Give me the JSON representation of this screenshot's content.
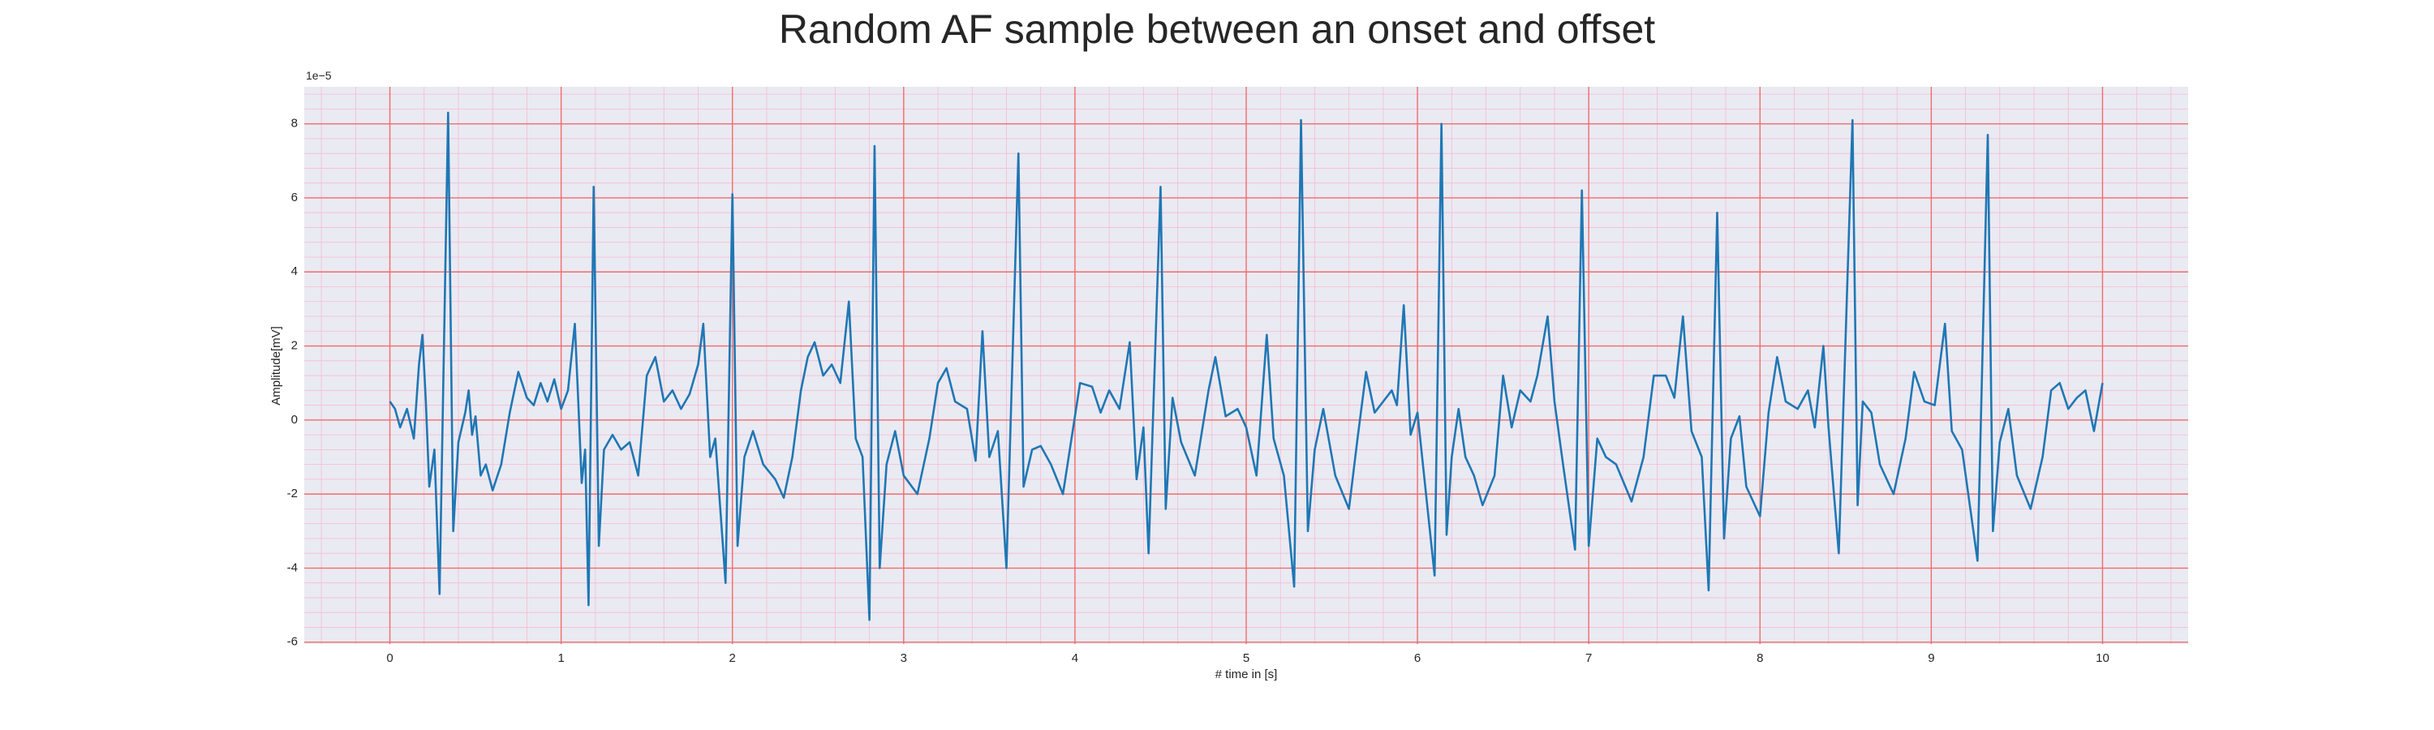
{
  "chart_data": {
    "type": "line",
    "title": "Random AF sample between an onset and offset",
    "xlabel": "# time in [s]",
    "ylabel": "Amplitude[mV]",
    "y_offset_label": "1e−5",
    "xlim": [
      -0.5,
      10.5
    ],
    "ylim": [
      -6.05,
      9.0
    ],
    "xticks": [
      0,
      1,
      2,
      3,
      4,
      5,
      6,
      7,
      8,
      9,
      10
    ],
    "yticks": [
      -6,
      -4,
      -2,
      0,
      2,
      4,
      6,
      8
    ],
    "grid": true,
    "grid_color": "#f26b6b",
    "minor_grid": true,
    "minor_grid_color": "#f5bcd0",
    "minor_divisions": 5,
    "background": "#eaeaf2",
    "x": [
      0,
      0.03,
      0.06,
      0.1,
      0.14,
      0.17,
      0.19,
      0.21,
      0.23,
      0.26,
      0.29,
      0.34,
      0.37,
      0.4,
      0.44,
      0.46,
      0.48,
      0.5,
      0.53,
      0.56,
      0.6,
      0.65,
      0.7,
      0.75,
      0.8,
      0.84,
      0.88,
      0.92,
      0.96,
      1.0,
      1.04,
      1.08,
      1.1,
      1.12,
      1.14,
      1.16,
      1.19,
      1.22,
      1.25,
      1.3,
      1.35,
      1.4,
      1.45,
      1.5,
      1.55,
      1.6,
      1.65,
      1.7,
      1.75,
      1.8,
      1.83,
      1.87,
      1.9,
      1.96,
      2.0,
      2.03,
      2.07,
      2.12,
      2.18,
      2.25,
      2.3,
      2.35,
      2.4,
      2.44,
      2.48,
      2.53,
      2.58,
      2.63,
      2.68,
      2.72,
      2.76,
      2.8,
      2.83,
      2.86,
      2.9,
      2.95,
      3.0,
      3.08,
      3.15,
      3.2,
      3.25,
      3.3,
      3.37,
      3.42,
      3.46,
      3.5,
      3.55,
      3.6,
      3.67,
      3.7,
      3.75,
      3.8,
      3.86,
      3.93,
      3.98,
      4.03,
      4.1,
      4.15,
      4.2,
      4.26,
      4.32,
      4.36,
      4.4,
      4.43,
      4.5,
      4.53,
      4.57,
      4.62,
      4.7,
      4.78,
      4.82,
      4.88,
      4.95,
      5.0,
      5.06,
      5.12,
      5.16,
      5.22,
      5.28,
      5.32,
      5.36,
      5.4,
      5.45,
      5.52,
      5.6,
      5.65,
      5.7,
      5.75,
      5.8,
      5.85,
      5.88,
      5.92,
      5.96,
      6.0,
      6.1,
      6.14,
      6.17,
      6.2,
      6.24,
      6.28,
      6.33,
      6.38,
      6.45,
      6.5,
      6.55,
      6.6,
      6.66,
      6.7,
      6.76,
      6.8,
      6.85,
      6.92,
      6.96,
      7.0,
      7.05,
      7.1,
      7.16,
      7.25,
      7.32,
      7.38,
      7.45,
      7.5,
      7.55,
      7.6,
      7.66,
      7.7,
      7.75,
      7.79,
      7.83,
      7.88,
      7.92,
      8.0,
      8.05,
      8.1,
      8.15,
      8.22,
      8.28,
      8.32,
      8.37,
      8.4,
      8.46,
      8.54,
      8.57,
      8.6,
      8.65,
      8.7,
      8.78,
      8.85,
      8.9,
      8.96,
      9.02,
      9.08,
      9.12,
      9.18,
      9.27,
      9.33,
      9.36,
      9.4,
      9.45,
      9.5,
      9.58,
      9.65,
      9.7,
      9.75,
      9.8,
      9.85,
      9.9,
      9.95,
      10.0
    ],
    "series": [
      {
        "color": "#1f77b4",
        "values": [
          0.5,
          0.3,
          -0.2,
          0.3,
          -0.5,
          1.5,
          2.3,
          0.5,
          -1.8,
          -0.8,
          -4.7,
          8.3,
          -3.0,
          -0.6,
          0.2,
          0.8,
          -0.4,
          0.1,
          -1.5,
          -1.2,
          -1.9,
          -1.2,
          0.2,
          1.3,
          0.6,
          0.4,
          1.0,
          0.5,
          1.1,
          0.3,
          0.8,
          2.6,
          0.5,
          -1.7,
          -0.8,
          -5.0,
          6.3,
          -3.4,
          -0.8,
          -0.4,
          -0.8,
          -0.6,
          -1.5,
          1.2,
          1.7,
          0.5,
          0.8,
          0.3,
          0.7,
          1.5,
          2.6,
          -1.0,
          -0.5,
          -4.4,
          6.1,
          -3.4,
          -1.0,
          -0.3,
          -1.2,
          -1.6,
          -2.1,
          -1.0,
          0.8,
          1.7,
          2.1,
          1.2,
          1.5,
          1.0,
          3.2,
          -0.5,
          -1.0,
          -5.4,
          7.4,
          -4.0,
          -1.2,
          -0.3,
          -1.5,
          -2.0,
          -0.5,
          1.0,
          1.4,
          0.5,
          0.3,
          -1.1,
          2.4,
          -1.0,
          -0.3,
          -4.0,
          7.2,
          -1.8,
          -0.8,
          -0.7,
          -1.2,
          -2.0,
          -0.5,
          1.0,
          0.9,
          0.2,
          0.8,
          0.3,
          2.1,
          -1.6,
          -0.2,
          -3.6,
          6.3,
          -2.4,
          0.6,
          -0.6,
          -1.5,
          0.8,
          1.7,
          0.1,
          0.3,
          -0.2,
          -1.5,
          2.3,
          -0.5,
          -1.5,
          -4.5,
          8.1,
          -3.0,
          -0.8,
          0.3,
          -1.5,
          -2.4,
          -0.5,
          1.3,
          0.2,
          0.5,
          0.8,
          0.4,
          3.1,
          -0.4,
          0.2,
          -4.2,
          8.0,
          -3.1,
          -1.0,
          0.3,
          -1.0,
          -1.5,
          -2.3,
          -1.5,
          1.2,
          -0.2,
          0.8,
          0.5,
          1.2,
          2.8,
          0.5,
          -1.2,
          -3.5,
          6.2,
          -3.4,
          -0.5,
          -1.0,
          -1.2,
          -2.2,
          -1.0,
          1.2,
          1.2,
          0.6,
          2.8,
          -0.3,
          -1.0,
          -4.6,
          5.6,
          -3.2,
          -0.5,
          0.1,
          -1.8,
          -2.6,
          0.2,
          1.7,
          0.5,
          0.3,
          0.8,
          -0.2,
          2.0,
          -0.2,
          -3.6,
          8.1,
          -2.3,
          0.5,
          0.2,
          -1.2,
          -2.0,
          -0.5,
          1.3,
          0.5,
          0.4,
          2.6,
          -0.3,
          -0.8,
          -3.8,
          7.7,
          -3.0,
          -0.6,
          0.3,
          -1.5,
          -2.4,
          -1.0,
          0.8,
          1.0,
          0.3,
          0.6,
          0.8,
          -0.3,
          1.0
        ]
      }
    ]
  }
}
